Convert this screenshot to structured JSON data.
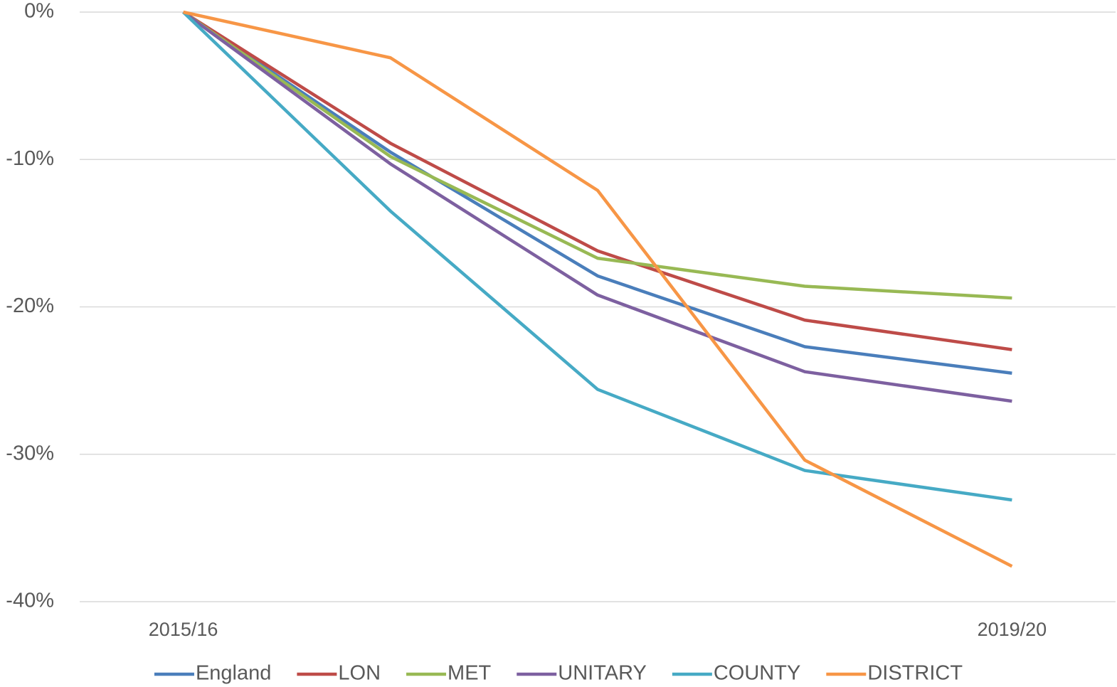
{
  "chart_data": {
    "type": "line",
    "categories": [
      "2015/16",
      null,
      null,
      null,
      "2019/20"
    ],
    "series": [
      {
        "name": "England",
        "color": "#4a7ebb",
        "values": [
          0,
          -9.5,
          -17.9,
          -22.7,
          -24.5
        ]
      },
      {
        "name": "LON",
        "color": "#be4b48",
        "values": [
          0,
          -8.9,
          -16.2,
          -20.9,
          -22.9
        ]
      },
      {
        "name": "MET",
        "color": "#98b954",
        "values": [
          0,
          -9.8,
          -16.7,
          -18.6,
          -19.4
        ]
      },
      {
        "name": "UNITARY",
        "color": "#7d60a0",
        "values": [
          0,
          -10.3,
          -19.2,
          -24.4,
          -26.4
        ]
      },
      {
        "name": "COUNTY",
        "color": "#46aac5",
        "values": [
          0,
          -13.5,
          -25.6,
          -31.1,
          -33.1
        ]
      },
      {
        "name": "DISTRICT",
        "color": "#f79646",
        "values": [
          0,
          -3.1,
          -12.1,
          -30.4,
          -37.6
        ]
      }
    ],
    "ylim": [
      -40,
      0
    ],
    "yticks": [
      {
        "value": 0,
        "label": "0%"
      },
      {
        "value": -10,
        "label": "-10%"
      },
      {
        "value": -20,
        "label": "-20%"
      },
      {
        "value": -30,
        "label": "-30%"
      },
      {
        "value": -40,
        "label": "-40%"
      }
    ],
    "grid": true,
    "legend": "bottom"
  }
}
